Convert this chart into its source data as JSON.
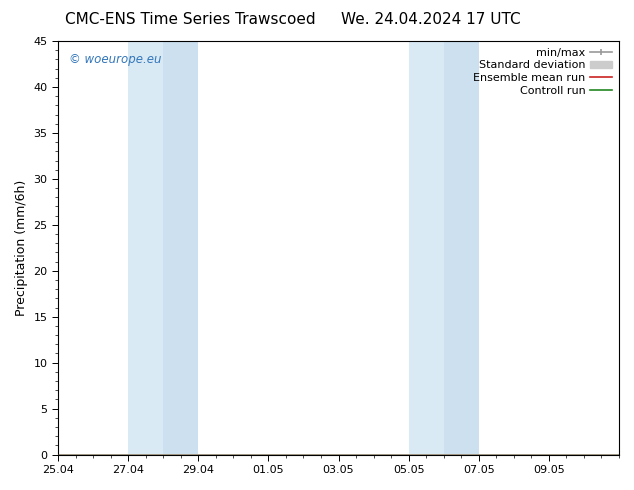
{
  "title_left": "CMC-ENS Time Series Trawscoed",
  "title_right": "We. 24.04.2024 17 UTC",
  "ylabel": "Precipitation (mm/6h)",
  "y_min": 0,
  "y_max": 45,
  "y_ticks": [
    0,
    5,
    10,
    15,
    20,
    25,
    30,
    35,
    40,
    45
  ],
  "x_tick_labels": [
    "25.04",
    "27.04",
    "29.04",
    "01.05",
    "03.05",
    "05.05",
    "07.05",
    "09.05"
  ],
  "x_tick_positions": [
    0,
    2,
    4,
    6,
    8,
    10,
    12,
    14
  ],
  "x_lim": [
    0,
    16
  ],
  "shaded_regions": [
    {
      "x_start": 2.0,
      "x_end": 3.0,
      "color": "#daeaf5"
    },
    {
      "x_start": 3.0,
      "x_end": 4.0,
      "color": "#cce0f0"
    },
    {
      "x_start": 10.0,
      "x_end": 11.0,
      "color": "#daeaf5"
    },
    {
      "x_start": 11.0,
      "x_end": 12.0,
      "color": "#cce0f0"
    }
  ],
  "watermark_text": "© woeurope.eu",
  "watermark_color": "#3377bb",
  "background_color": "#ffffff",
  "legend_items": [
    {
      "label": "min/max",
      "color": "#999999",
      "lw": 1.2
    },
    {
      "label": "Standard deviation",
      "color": "#cccccc",
      "lw": 5
    },
    {
      "label": "Ensemble mean run",
      "color": "#cc2222",
      "lw": 1.2
    },
    {
      "label": "Controll run",
      "color": "#228822",
      "lw": 1.2
    }
  ],
  "title_fontsize": 11,
  "tick_fontsize": 8,
  "ylabel_fontsize": 9,
  "legend_fontsize": 8
}
